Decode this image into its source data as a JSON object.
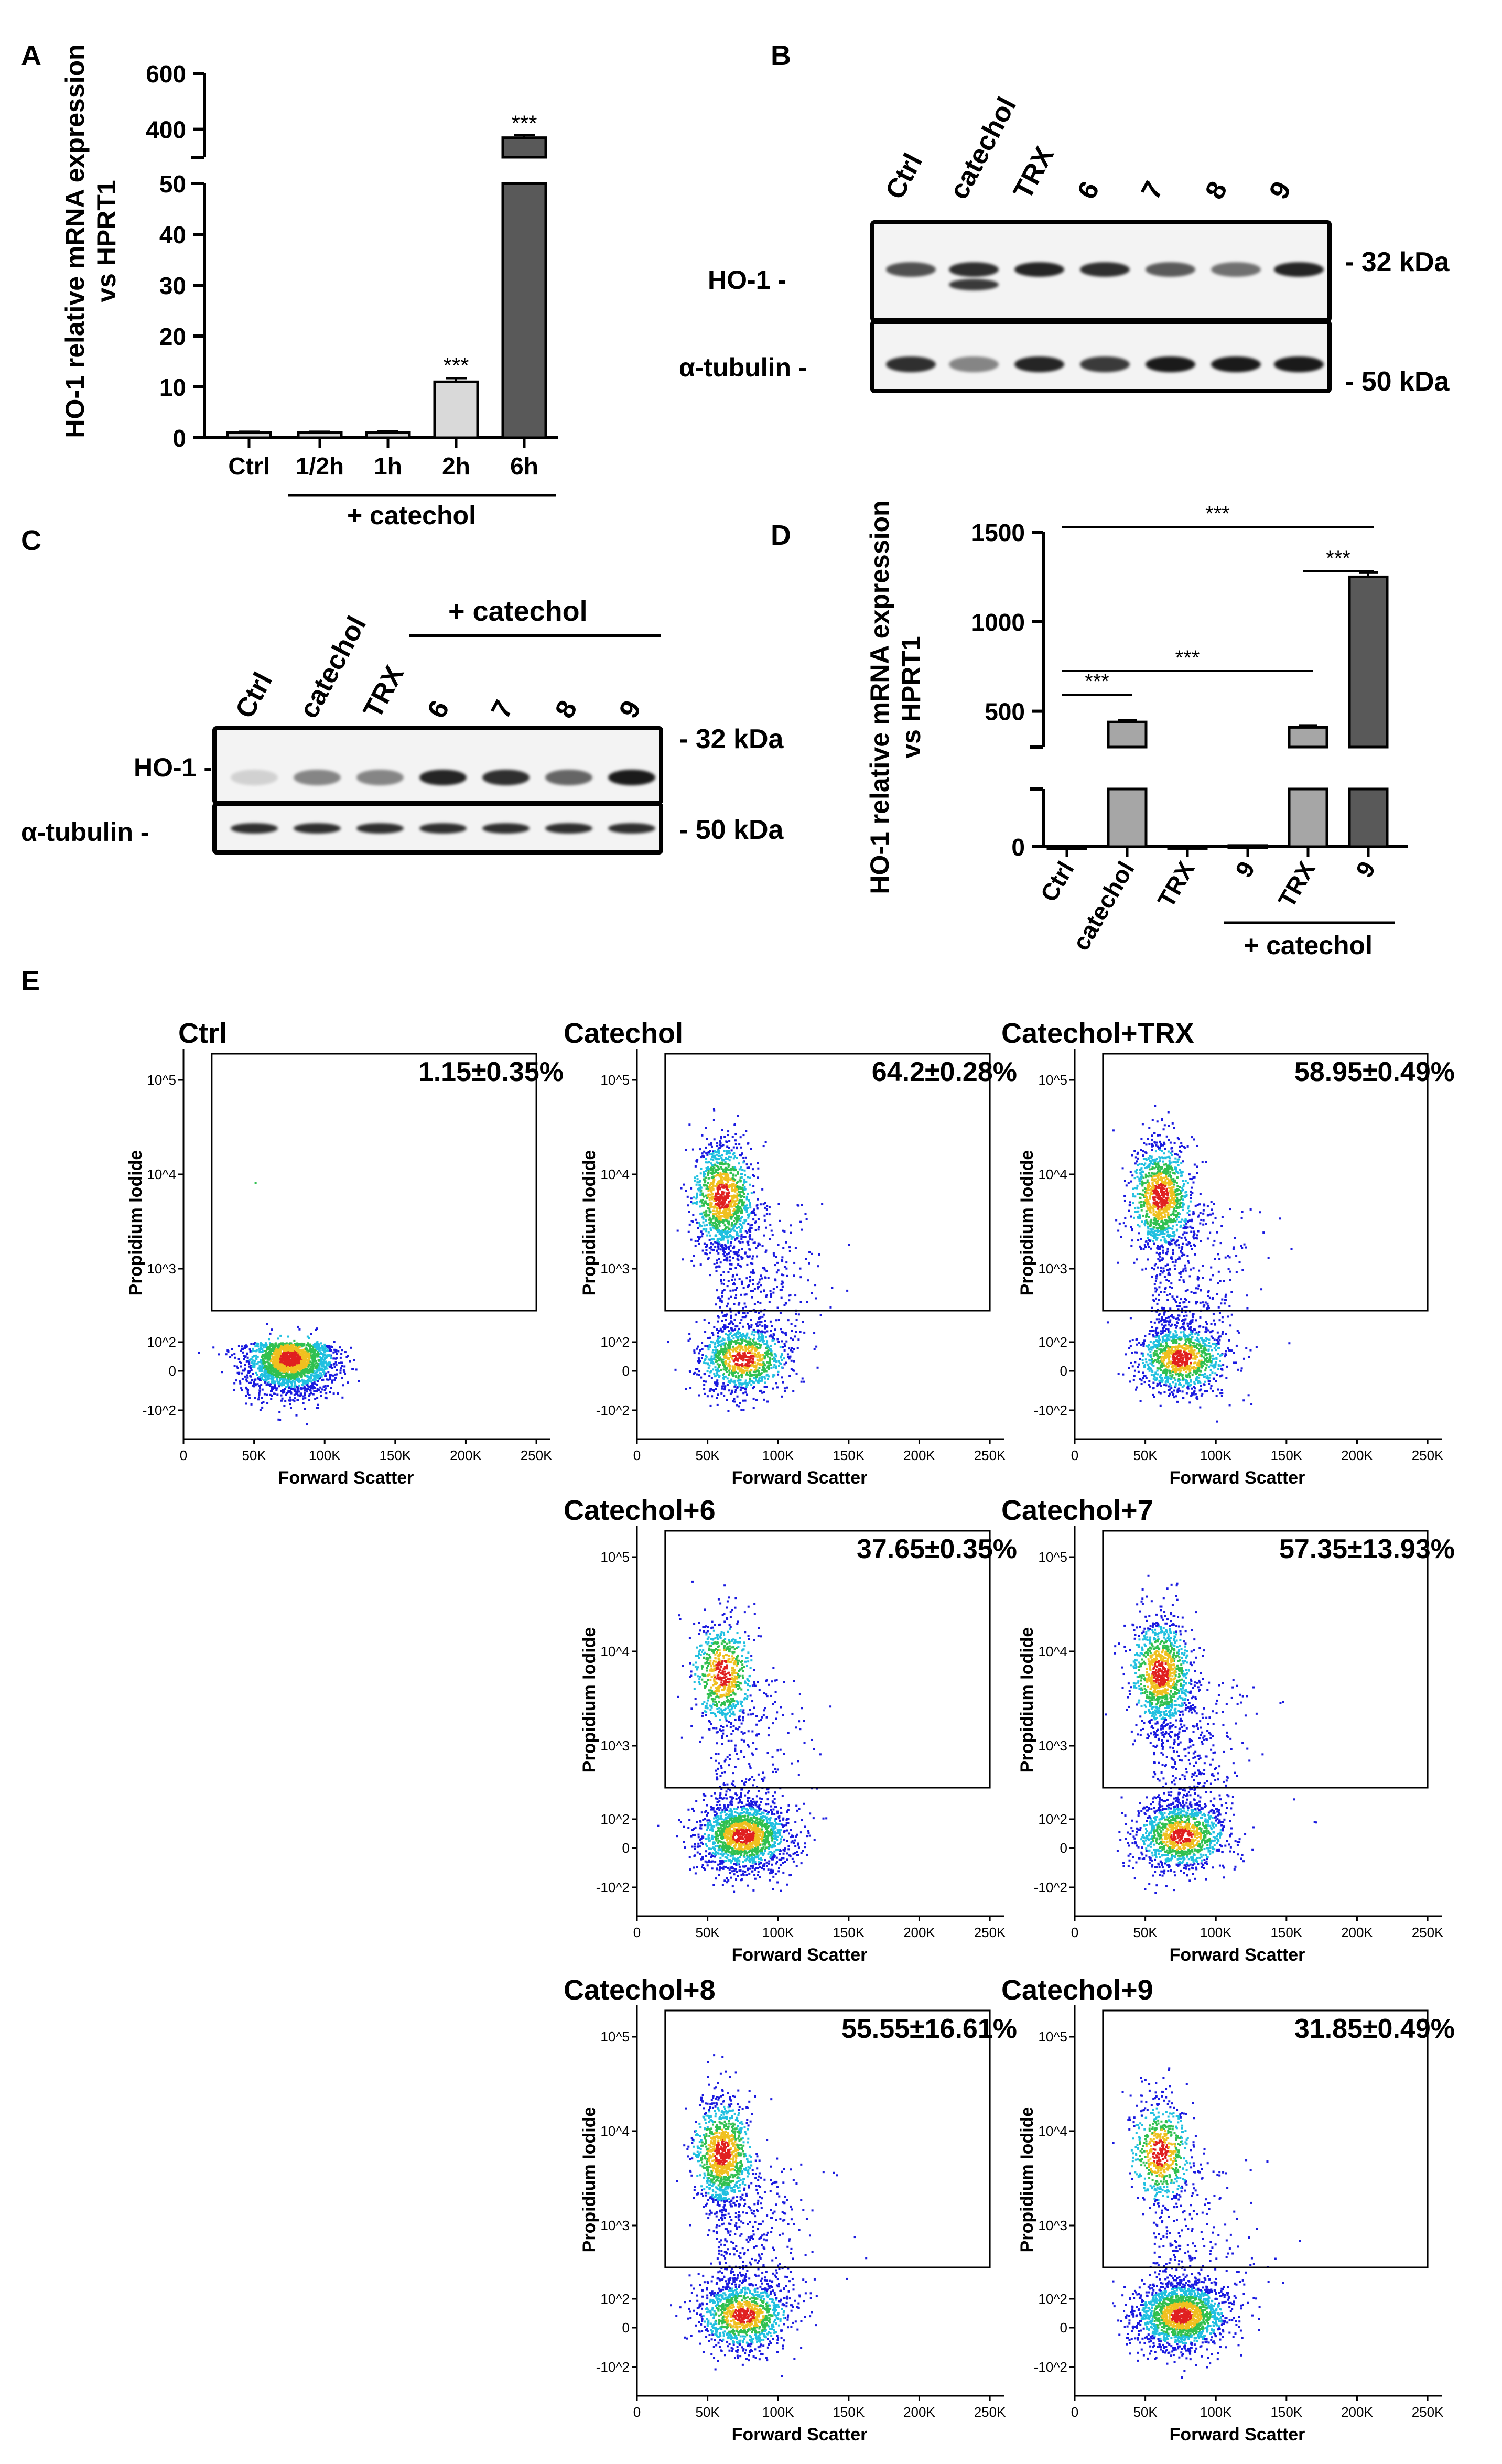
{
  "panel_labels": {
    "a": "A",
    "b": "B",
    "c": "C",
    "d": "D",
    "e": "E"
  },
  "chart_data": [
    {
      "type": "bar",
      "panel": "A",
      "ylabel_line1": "HO-1 relative mRNA expression",
      "ylabel_line2": "vs HPRT1",
      "categories": [
        "Ctrl",
        "1/2h",
        "1h",
        "2h",
        "6h"
      ],
      "values": [
        1,
        1,
        1,
        11,
        370
      ],
      "errors": [
        0.2,
        0.2,
        0.3,
        0.7,
        10
      ],
      "significance": [
        "",
        "",
        "",
        "***",
        "***"
      ],
      "group_label": "+ catechol",
      "lower_ticks": [
        "0",
        "10",
        "20",
        "30",
        "40",
        "50"
      ],
      "upper_ticks": [
        "400",
        "600"
      ],
      "ylim_lower": [
        0,
        50
      ],
      "ylim_upper": [
        300,
        600
      ],
      "colors": [
        "#d9d9d9",
        "#d9d9d9",
        "#d9d9d9",
        "#d9d9d9",
        "#595959"
      ]
    },
    {
      "type": "bar",
      "panel": "D",
      "ylabel_line1": "HO-1 relative mRNA expression",
      "ylabel_line2": "vs HPRT1",
      "categories": [
        "Ctrl",
        "catechol",
        "TRX",
        "9",
        "TRX",
        "9"
      ],
      "values": [
        1,
        440,
        2,
        8,
        410,
        1250
      ],
      "errors": [
        0.5,
        10,
        1,
        2,
        12,
        25
      ],
      "group_label": "+ catechol",
      "ticks": [
        "0",
        "500",
        "1000",
        "1500"
      ],
      "ylim_upper": [
        300,
        1500
      ],
      "sig_brackets": [
        {
          "from": 0,
          "to": 5,
          "label": "***"
        },
        {
          "from": 4,
          "to": 5,
          "label": "***"
        },
        {
          "from": 0,
          "to": 4,
          "label": "***"
        },
        {
          "from": 0,
          "to": 1,
          "label": "***"
        }
      ],
      "colors": [
        "#a6a6a6",
        "#a6a6a6",
        "#a6a6a6",
        "#a6a6a6",
        "#a6a6a6",
        "#595959"
      ]
    },
    {
      "type": "scatter",
      "panel": "E",
      "xlabel": "Forward Scatter",
      "ylabel": "Propidium Iodide",
      "xticks": [
        "0",
        "50K",
        "100K",
        "150K",
        "200K",
        "250K"
      ],
      "yticks": [
        "10^5",
        "10^4",
        "10^3",
        "10^2",
        "0",
        "-10^2"
      ],
      "plots": [
        {
          "title": "Ctrl",
          "percent": "1.15±0.35%",
          "value": 1.15,
          "sd": 0.35
        },
        {
          "title": "Catechol",
          "percent": "64.2±0.28%",
          "value": 64.2,
          "sd": 0.28
        },
        {
          "title": "Catechol+TRX",
          "percent": "58.95±0.49%",
          "value": 58.95,
          "sd": 0.49
        },
        {
          "title": "Catechol+6",
          "percent": "37.65±0.35%",
          "value": 37.65,
          "sd": 0.35
        },
        {
          "title": "Catechol+7",
          "percent": "57.35±13.93%",
          "value": 57.35,
          "sd": 13.93
        },
        {
          "title": "Catechol+8",
          "percent": "55.55±16.61%",
          "value": 55.55,
          "sd": 16.61
        },
        {
          "title": "Catechol+9",
          "percent": "31.85±0.49%",
          "value": 31.85,
          "sd": 0.49
        }
      ]
    }
  ],
  "blot_b": {
    "lanes": [
      "Ctrl",
      "catechol",
      "TRX",
      "6",
      "7",
      "8",
      "9"
    ],
    "row1_label": "HO-1 -",
    "row2_label": "α-tubulin -",
    "kda1": "- 32 kDa",
    "kda2": "- 50 kDa"
  },
  "blot_c": {
    "lanes": [
      "Ctrl",
      "catechol",
      "TRX",
      "6",
      "7",
      "8",
      "9"
    ],
    "group_label": "+ catechol",
    "row1_label": "HO-1 -",
    "row2_label": "α-tubulin -",
    "kda1": "- 32 kDa",
    "kda2": "- 50 kDa"
  }
}
